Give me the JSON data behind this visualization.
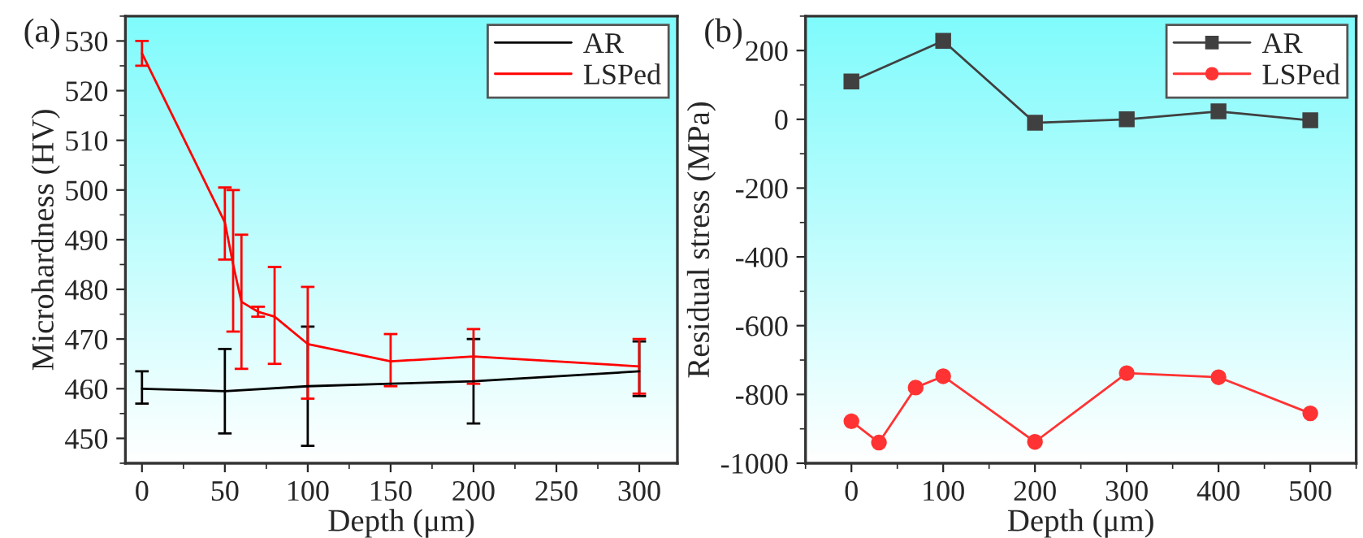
{
  "chart_data": [
    {
      "type": "line",
      "xlabel": "Depth (μm)",
      "ylabel": "Microhardness (HV)",
      "annotations": [
        "(a)"
      ],
      "xlim": [
        -10,
        323
      ],
      "xticks": [
        0,
        50,
        100,
        150,
        200,
        250,
        300
      ],
      "ylim": [
        445,
        535
      ],
      "yticks": [
        450,
        460,
        470,
        480,
        490,
        500,
        510,
        520,
        530
      ],
      "legend": "top right",
      "grid": false,
      "marker": "none",
      "series": [
        {
          "name": "AR",
          "color": "#000000",
          "x": [
            0,
            50,
            100,
            150,
            200,
            300
          ],
          "values": [
            460,
            459.5,
            460.5,
            461,
            461.5,
            463.5
          ],
          "errors": [
            [
              457,
              463.5
            ],
            [
              451,
              468
            ],
            [
              448.5,
              472.5
            ],
            null,
            [
              453,
              470
            ],
            [
              458.5,
              469.5
            ]
          ]
        },
        {
          "name": "LSPed",
          "color": "#ff0000",
          "x": [
            0,
            50,
            55,
            60,
            70,
            80,
            100,
            150,
            200,
            300
          ],
          "values": [
            527.5,
            493.5,
            485,
            477.5,
            475.5,
            474.5,
            469,
            465.5,
            466.5,
            464.5
          ],
          "errors": [
            [
              525,
              530
            ],
            [
              486,
              500.5
            ],
            [
              471.5,
              500
            ],
            [
              464,
              491
            ],
            [
              474.5,
              476.5
            ],
            [
              465,
              484.5
            ],
            [
              458,
              480.5
            ],
            [
              460.5,
              471
            ],
            [
              461,
              472
            ],
            [
              459,
              470
            ]
          ]
        }
      ]
    },
    {
      "type": "line",
      "xlabel": "Depth (μm)",
      "ylabel": "Residual stress (MPa)",
      "annotations": [
        "(b)"
      ],
      "xlim": [
        -50,
        550
      ],
      "xticks": [
        0,
        100,
        200,
        300,
        400,
        500
      ],
      "ylim": [
        -1000,
        300
      ],
      "yticks": [
        {
          "value": -1000,
          "label": "-1000"
        },
        {
          "value": -800,
          "label": "-800"
        },
        {
          "value": -600,
          "label": "-600"
        },
        {
          "value": -400,
          "label": "-400"
        },
        {
          "value": -200,
          "label": "-200"
        },
        0,
        200
      ],
      "legend": "top right",
      "grid": false,
      "series": [
        {
          "name": "AR",
          "color": "#404040",
          "marker": "square",
          "x": [
            0,
            100,
            200,
            300,
            400,
            500
          ],
          "values": [
            110,
            228,
            -10,
            0,
            23,
            -3
          ]
        },
        {
          "name": "LSPed",
          "color": "#ff3333",
          "marker": "circle",
          "x": [
            0,
            30,
            70,
            100,
            200,
            300,
            400,
            500
          ],
          "values": [
            -878,
            -940,
            -780,
            -747,
            -938,
            -738,
            -750,
            -855
          ]
        }
      ]
    }
  ]
}
